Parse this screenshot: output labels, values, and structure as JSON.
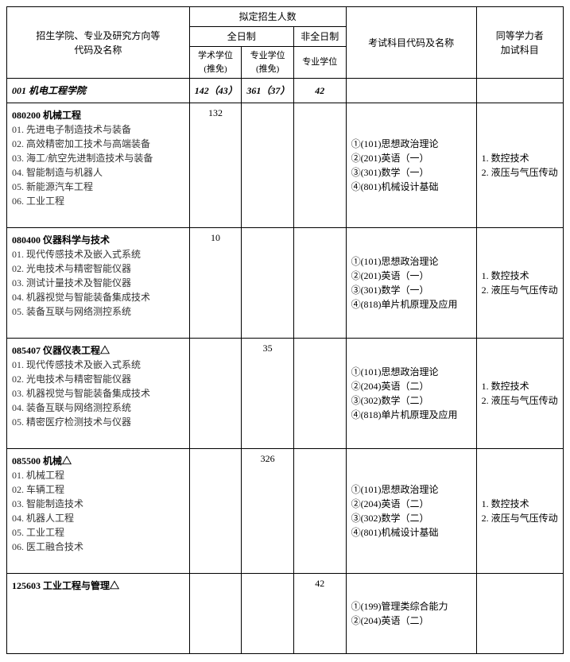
{
  "headers": {
    "col_main": "招生学院、专业及研究方向等\n代码及名称",
    "col_plan": "拟定招生人数",
    "col_full": "全日制",
    "col_part": "非全日制",
    "col_acad": "学术学位\n(推免)",
    "col_prof": "专业学位\n(推免)",
    "col_prof2": "专业学位",
    "col_exam": "考试科目代码及名称",
    "col_addl": "同等学力者\n加试科目"
  },
  "school_row": {
    "name": "001 机电工程学院",
    "acad": "142（43）",
    "prof": "361（37）",
    "part": "42"
  },
  "majors": [
    {
      "code_name": "080200 机械工程",
      "acad": "132",
      "prof": "",
      "part": "",
      "directions": [
        "01. 先进电子制造技术与装备",
        "02. 高效精密加工技术与高端装备",
        "03. 海工/航空先进制造技术与装备",
        "04. 智能制造与机器人",
        "05. 新能源汽车工程",
        "06. 工业工程"
      ],
      "exams": [
        "①(101)思想政治理论",
        "②(201)英语（一）",
        "③(301)数学（一）",
        "④(801)机械设计基础"
      ],
      "additional": [
        "1. 数控技术",
        "2. 液压与气压传动"
      ]
    },
    {
      "code_name": "080400 仪器科学与技术",
      "acad": "10",
      "prof": "",
      "part": "",
      "directions": [
        "01. 现代传感技术及嵌入式系统",
        "02. 光电技术与精密智能仪器",
        "03. 测试计量技术及智能仪器",
        "04. 机器视觉与智能装备集成技术",
        "05. 装备互联与网络测控系统"
      ],
      "exams": [
        "①(101)思想政治理论",
        "②(201)英语（一）",
        "③(301)数学（一）",
        "④(818)单片机原理及应用"
      ],
      "additional": [
        "1. 数控技术",
        "2. 液压与气压传动"
      ]
    },
    {
      "code_name": "085407 仪器仪表工程△",
      "acad": "",
      "prof": "35",
      "part": "",
      "directions": [
        "01. 现代传感技术及嵌入式系统",
        "02. 光电技术与精密智能仪器",
        "03. 机器视觉与智能装备集成技术",
        "04. 装备互联与网络测控系统",
        "05. 精密医疗检测技术与仪器"
      ],
      "exams": [
        "①(101)思想政治理论",
        "②(204)英语（二）",
        "③(302)数学（二）",
        "④(818)单片机原理及应用"
      ],
      "additional": [
        "1. 数控技术",
        "2. 液压与气压传动"
      ]
    },
    {
      "code_name": "085500 机械△",
      "acad": "",
      "prof": "326",
      "part": "",
      "directions": [
        "01. 机械工程",
        "02. 车辆工程",
        "03. 智能制造技术",
        "04. 机器人工程",
        "05. 工业工程",
        "06. 医工融合技术"
      ],
      "exams": [
        "①(101)思想政治理论",
        "②(204)英语（二）",
        "③(302)数学（二）",
        "④(801)机械设计基础"
      ],
      "additional": [
        "1. 数控技术",
        "2. 液压与气压传动"
      ]
    },
    {
      "code_name": "125603 工业工程与管理△",
      "acad": "",
      "prof": "",
      "part": "42",
      "directions": [],
      "exams": [
        "①(199)管理类综合能力",
        "②(204)英语（二）"
      ],
      "additional": []
    }
  ]
}
